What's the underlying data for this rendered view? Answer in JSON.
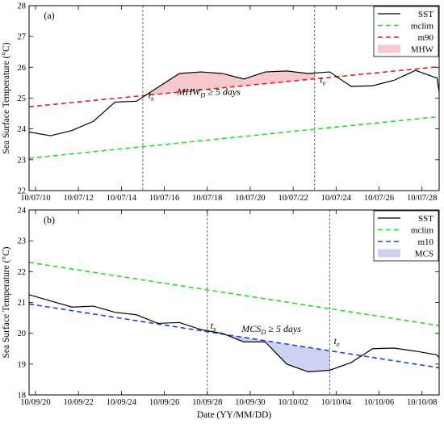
{
  "colors": {
    "sst": "#000000",
    "mclim": "#22dd22",
    "m90": "#e32020",
    "m10": "#2040d8",
    "mhw_fill": "#f7c8cc",
    "mcs_fill": "#cdd2f2"
  },
  "chart_data": [
    {
      "type": "line",
      "panel_label": "(a)",
      "ylabel": "Sea Surface Temperature (°C)",
      "xlabel": "",
      "xlim": [
        0,
        19.1
      ],
      "ylim": [
        22,
        28
      ],
      "yticks": [
        22,
        23,
        24,
        25,
        26,
        27,
        28
      ],
      "xtick_positions": [
        0.3,
        2.3,
        4.3,
        6.3,
        8.3,
        10.3,
        12.3,
        14.3,
        16.3,
        18.3
      ],
      "xtick_labels": [
        "10/07/10",
        "10/07/12",
        "10/07/14",
        "10/07/16",
        "10/07/18",
        "10/07/20",
        "10/07/22",
        "10/07/24",
        "10/07/26",
        "10/07/28"
      ],
      "grid": false,
      "legend_position": "top-right",
      "legend": [
        "SST",
        "mclim",
        "m90",
        "MHW"
      ],
      "series": [
        {
          "name": "SST",
          "x": [
            0,
            1,
            2,
            3,
            4,
            5,
            6,
            7,
            8,
            9,
            10,
            11,
            12,
            13,
            14,
            15,
            16,
            17,
            18,
            19,
            19.1
          ],
          "values": [
            23.9,
            23.78,
            23.95,
            24.25,
            24.87,
            24.9,
            25.35,
            25.8,
            25.85,
            25.8,
            25.62,
            25.85,
            25.88,
            25.8,
            25.85,
            25.38,
            25.4,
            25.58,
            25.9,
            25.65,
            25.2
          ]
        },
        {
          "name": "mclim",
          "x": [
            0,
            19.1
          ],
          "values": [
            23.05,
            24.4
          ]
        },
        {
          "name": "m90",
          "x": [
            0,
            19.1
          ],
          "values": [
            24.72,
            26.02
          ]
        }
      ],
      "event": {
        "name": "MHW",
        "start_x": 5.3,
        "end_x": 13.3
      },
      "annotations": {
        "ts": {
          "letter": "t",
          "sub": "s",
          "x": 5.55,
          "y": 25.0
        },
        "te": {
          "letter": "t",
          "sub": "e",
          "x": 13.55,
          "y": 25.5
        },
        "duration": {
          "main": "MHW",
          "sub": "D",
          "rest": " ≥ 5 days",
          "x": 6.9,
          "y": 25.1
        }
      }
    },
    {
      "type": "line",
      "panel_label": "(b)",
      "ylabel": "Sea Surface Temperature (°C)",
      "xlabel": "Date (YY/MM/DD)",
      "xlim": [
        0,
        19.1
      ],
      "ylim": [
        18,
        24
      ],
      "yticks": [
        18,
        19,
        20,
        21,
        22,
        23,
        24
      ],
      "xtick_positions": [
        0.3,
        2.3,
        4.3,
        6.3,
        8.3,
        10.3,
        12.3,
        14.3,
        16.3,
        18.3
      ],
      "xtick_labels": [
        "10/09/20",
        "10/09/22",
        "10/09/24",
        "10/09/26",
        "10/09/28",
        "10/09/30",
        "10/10/02",
        "10/10/04",
        "10/10/06",
        "10/10/08"
      ],
      "grid": false,
      "legend_position": "top-right",
      "legend": [
        "SST",
        "mclim",
        "m10",
        "MCS"
      ],
      "series": [
        {
          "name": "SST",
          "x": [
            0,
            1,
            2,
            3,
            4,
            5,
            6,
            7,
            8,
            9,
            10,
            11,
            12,
            13,
            14,
            15,
            16,
            17,
            18,
            19,
            19.1
          ],
          "values": [
            21.25,
            21.05,
            20.85,
            20.88,
            20.68,
            20.6,
            20.32,
            20.35,
            20.12,
            20.0,
            19.72,
            19.72,
            19.0,
            18.75,
            18.8,
            19.05,
            19.5,
            19.52,
            19.42,
            19.3,
            19.2
          ]
        },
        {
          "name": "mclim",
          "x": [
            0,
            19.1
          ],
          "values": [
            22.3,
            20.25
          ]
        },
        {
          "name": "m10",
          "x": [
            0,
            19.1
          ],
          "values": [
            20.95,
            18.88
          ]
        }
      ],
      "event": {
        "name": "MCS",
        "start_x": 8.3,
        "end_x": 14.0
      },
      "annotations": {
        "ts": {
          "letter": "t",
          "sub": "s",
          "x": 8.45,
          "y": 20.15
        },
        "te": {
          "letter": "t",
          "sub": "e",
          "x": 14.2,
          "y": 19.65
        },
        "duration": {
          "main": "MCS",
          "sub": "D",
          "rest": " ≥ 5 days",
          "x": 9.9,
          "y": 20.05
        }
      }
    }
  ]
}
